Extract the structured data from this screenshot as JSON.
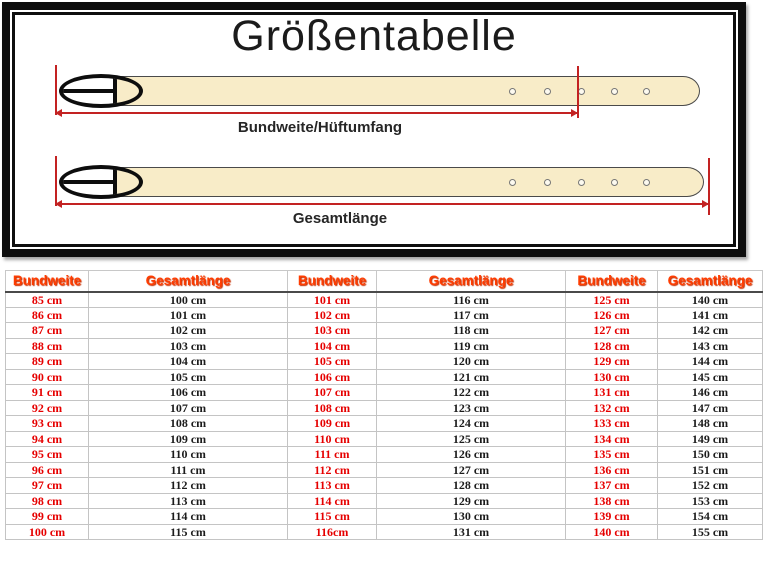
{
  "diagram": {
    "title": "Größentabelle",
    "belt_waist": {
      "label": "Bundweite/Hüftumfang"
    },
    "belt_total": {
      "label": "Gesamtlänge"
    }
  },
  "table": {
    "columns": [
      "Bundweite",
      "Gesamtlänge",
      "Bundweite",
      "Gesamtlänge",
      "Bundweite",
      "Gesamtlänge"
    ],
    "rows": [
      [
        "85 cm",
        "100 cm",
        "101 cm",
        "116 cm",
        "125 cm",
        "140 cm"
      ],
      [
        "86 cm",
        "101 cm",
        "102 cm",
        "117 cm",
        "126 cm",
        "141 cm"
      ],
      [
        "87 cm",
        "102 cm",
        "103 cm",
        "118 cm",
        "127 cm",
        "142 cm"
      ],
      [
        "88 cm",
        "103 cm",
        "104 cm",
        "119 cm",
        "128 cm",
        "143 cm"
      ],
      [
        "89 cm",
        "104 cm",
        "105 cm",
        "120 cm",
        "129 cm",
        "144 cm"
      ],
      [
        "90 cm",
        "105 cm",
        "106 cm",
        "121 cm",
        "130 cm",
        "145 cm"
      ],
      [
        "91 cm",
        "106 cm",
        "107 cm",
        "122 cm",
        "131 cm",
        "146 cm"
      ],
      [
        "92 cm",
        "107 cm",
        "108 cm",
        "123 cm",
        "132 cm",
        "147 cm"
      ],
      [
        "93 cm",
        "108 cm",
        "109 cm",
        "124 cm",
        "133 cm",
        "148 cm"
      ],
      [
        "94 cm",
        "109 cm",
        "110 cm",
        "125 cm",
        "134 cm",
        "149 cm"
      ],
      [
        "95 cm",
        "110 cm",
        "111 cm",
        "126 cm",
        "135 cm",
        "150 cm"
      ],
      [
        "96 cm",
        "111 cm",
        "112 cm",
        "127 cm",
        "136 cm",
        "151 cm"
      ],
      [
        "97 cm",
        "112 cm",
        "113 cm",
        "128 cm",
        "137 cm",
        "152 cm"
      ],
      [
        "98 cm",
        "113 cm",
        "114 cm",
        "129 cm",
        "138 cm",
        "153 cm"
      ],
      [
        "99 cm",
        "114 cm",
        "115 cm",
        "130 cm",
        "139 cm",
        "154 cm"
      ],
      [
        "100 cm",
        "115 cm",
        "116cm",
        "131 cm",
        "140 cm",
        "155 cm"
      ]
    ]
  },
  "colors": {
    "frame_black": "#0e0e0e",
    "measure_red": "#c32222",
    "header_orange": "#ff3c00",
    "value_red": "#e60000",
    "value_black": "#1c1c1c",
    "belt_cream": "#f8ecc8"
  }
}
